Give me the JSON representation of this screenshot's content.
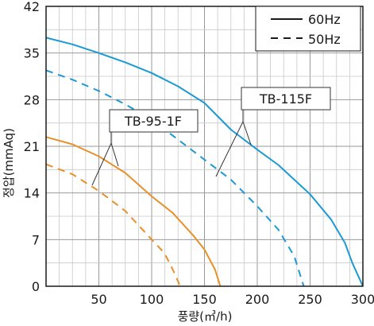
{
  "chart_data": {
    "type": "line",
    "xlabel": "풍량(㎥/h)",
    "ylabel": "정압(mmAq)",
    "xlim": [
      0,
      300
    ],
    "ylim": [
      0,
      42
    ],
    "xticks": [
      50,
      100,
      150,
      200,
      250,
      300
    ],
    "yticks": [
      0,
      7,
      14,
      21,
      28,
      35,
      42
    ],
    "grid": true,
    "legend": {
      "placement": "top-right",
      "entries": [
        {
          "label": "60Hz",
          "style": "solid"
        },
        {
          "label": "50Hz",
          "style": "dashed"
        }
      ]
    },
    "series": [
      {
        "name": "TB-115F",
        "frequency": "60Hz",
        "style": "solid",
        "color": "#1b9ad6",
        "x": [
          0,
          25,
          50,
          75,
          100,
          125,
          150,
          175,
          200,
          220,
          250,
          270,
          283,
          290,
          300
        ],
        "y": [
          37.3,
          36.3,
          35.0,
          33.6,
          32.0,
          30.0,
          27.5,
          23.5,
          20.5,
          18.2,
          13.8,
          10.0,
          6.5,
          3.5,
          0
        ]
      },
      {
        "name": "TB-115F",
        "frequency": "50Hz",
        "style": "dashed",
        "color": "#1b9ad6",
        "x": [
          0,
          25,
          50,
          75,
          100,
          125,
          150,
          175,
          200,
          220,
          235,
          244
        ],
        "y": [
          32.4,
          31.0,
          29.3,
          27.3,
          25.0,
          22.0,
          19.0,
          16.0,
          12.0,
          8.5,
          4.5,
          0
        ]
      },
      {
        "name": "TB-95-1F",
        "frequency": "60Hz",
        "style": "solid",
        "color": "#e8902a",
        "x": [
          0,
          25,
          50,
          75,
          100,
          120,
          140,
          150,
          160,
          165
        ],
        "y": [
          22.4,
          21.3,
          19.5,
          17.0,
          13.5,
          11.0,
          7.5,
          5.5,
          2.5,
          0
        ]
      },
      {
        "name": "TB-95-1F",
        "frequency": "50Hz",
        "style": "dashed",
        "color": "#e8902a",
        "x": [
          0,
          25,
          50,
          75,
          100,
          112,
          120,
          127
        ],
        "y": [
          18.3,
          16.8,
          14.3,
          11.3,
          7.0,
          5.0,
          2.5,
          0
        ]
      }
    ],
    "annotations": [
      {
        "text": "TB-95-1F"
      },
      {
        "text": "TB-115F"
      }
    ]
  }
}
